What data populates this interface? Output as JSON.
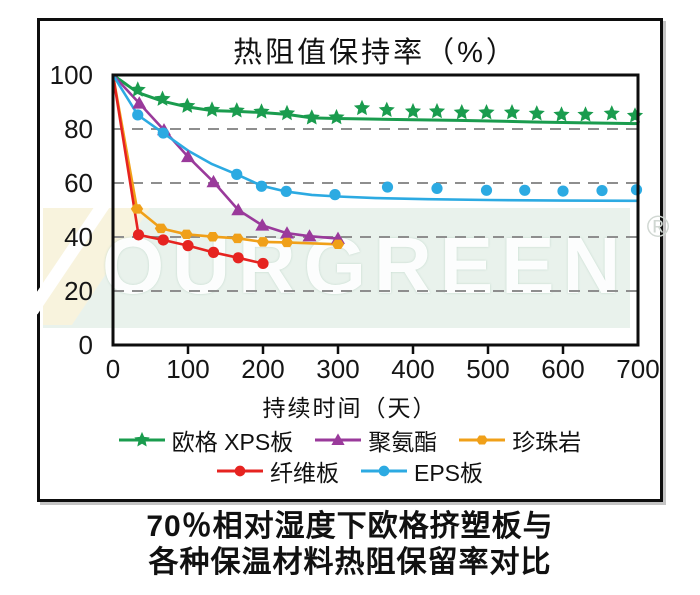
{
  "chart_data": {
    "type": "line",
    "title": "热阻值保持率（%）",
    "xlabel": "持续时间（天）",
    "ylabel": "",
    "xlim": [
      0,
      700
    ],
    "ylim": [
      0,
      100
    ],
    "x_ticks": [
      0,
      100,
      200,
      300,
      400,
      500,
      600,
      700
    ],
    "y_ticks": [
      0,
      20,
      40,
      60,
      80,
      100
    ],
    "grid_values": [
      20,
      40,
      60,
      80
    ],
    "grid_style": "dashed",
    "legend_position": "bottom",
    "colors": {
      "grid": "#8e8e8e",
      "axis": "#0d0d0d"
    },
    "series": [
      {
        "name": "欧格 XPS板",
        "color": "#1a9c4e",
        "marker": "star",
        "line": [
          [
            0,
            100
          ],
          [
            33,
            93.5
          ],
          [
            66,
            90.3
          ],
          [
            99,
            88.2
          ],
          [
            132,
            86.8
          ],
          [
            165,
            86.5
          ],
          [
            198,
            86.1
          ],
          [
            232,
            85.4
          ],
          [
            265,
            84.1
          ],
          [
            298,
            83.9
          ],
          [
            340,
            83.7
          ],
          [
            400,
            83.4
          ],
          [
            460,
            83.2
          ],
          [
            520,
            82.9
          ],
          [
            560,
            82.6
          ],
          [
            620,
            82.3
          ],
          [
            700,
            82
          ]
        ],
        "markers": [
          [
            33,
            94.5
          ],
          [
            66,
            91.1
          ],
          [
            99,
            88.5
          ],
          [
            132,
            87.1
          ],
          [
            165,
            86.8
          ],
          [
            198,
            86.4
          ],
          [
            232,
            85.8
          ],
          [
            265,
            84.2
          ],
          [
            298,
            84.3
          ],
          [
            332,
            87.7
          ],
          [
            365,
            87
          ],
          [
            400,
            86.5
          ],
          [
            432,
            86.5
          ],
          [
            465,
            86.1
          ],
          [
            498,
            86.1
          ],
          [
            532,
            86.1
          ],
          [
            565,
            85.7
          ],
          [
            598,
            85.3
          ],
          [
            630,
            85.3
          ],
          [
            665,
            85.7
          ],
          [
            696,
            84.9
          ]
        ]
      },
      {
        "name": "聚氨酯",
        "color": "#9a3a9b",
        "marker": "triangle",
        "line": [
          [
            0,
            100
          ],
          [
            35,
            89.5
          ],
          [
            68,
            79.6
          ],
          [
            100,
            69.7
          ],
          [
            134,
            60.4
          ],
          [
            167,
            50
          ],
          [
            199,
            44.3
          ],
          [
            232,
            41.4
          ],
          [
            262,
            40.3
          ],
          [
            300,
            39.4
          ]
        ],
        "markers": [
          [
            35,
            89.5
          ],
          [
            68,
            79.6
          ],
          [
            100,
            69.7
          ],
          [
            134,
            60.4
          ],
          [
            167,
            50
          ],
          [
            199,
            44.3
          ],
          [
            232,
            41.4
          ],
          [
            262,
            40.3
          ],
          [
            300,
            39.4
          ]
        ]
      },
      {
        "name": "珍珠岩",
        "color": "#f0a019",
        "marker": "hexagon",
        "line": [
          [
            0,
            100
          ],
          [
            32,
            50.4
          ],
          [
            64,
            43.2
          ],
          [
            98,
            41
          ],
          [
            133,
            40.1
          ],
          [
            166,
            39.5
          ],
          [
            200,
            38.2
          ],
          [
            232,
            38
          ],
          [
            300,
            37.3
          ]
        ],
        "markers": [
          [
            32,
            50.4
          ],
          [
            64,
            43.2
          ],
          [
            98,
            41
          ],
          [
            133,
            40.1
          ],
          [
            166,
            39.5
          ],
          [
            200,
            38.2
          ],
          [
            232,
            38
          ],
          [
            300,
            37.3
          ]
        ]
      },
      {
        "name": "纤维板",
        "color": "#e62320",
        "marker": "circle",
        "line": [
          [
            0,
            100
          ],
          [
            34,
            40.8
          ],
          [
            67,
            38.9
          ],
          [
            100,
            36.8
          ],
          [
            134,
            34.3
          ],
          [
            167,
            32.3
          ],
          [
            200,
            30.2
          ]
        ],
        "markers": [
          [
            34,
            40.8
          ],
          [
            67,
            38.9
          ],
          [
            100,
            36.8
          ],
          [
            134,
            34.3
          ],
          [
            167,
            32.3
          ],
          [
            200,
            30.2
          ]
        ]
      },
      {
        "name": "EPS板",
        "color": "#2caae2",
        "marker": "circle",
        "line": [
          [
            0,
            100
          ],
          [
            33,
            85.2
          ],
          [
            67,
            78.5
          ],
          [
            100,
            72
          ],
          [
            132,
            67
          ],
          [
            165,
            63.2
          ],
          [
            198,
            59
          ],
          [
            231,
            56.8
          ],
          [
            265,
            55.6
          ],
          [
            300,
            55
          ],
          [
            350,
            54.4
          ],
          [
            420,
            54
          ],
          [
            500,
            53.7
          ],
          [
            600,
            53.5
          ],
          [
            700,
            53.4
          ]
        ],
        "markers": [
          [
            33,
            85.2
          ],
          [
            67,
            78.5
          ],
          [
            165,
            63.2
          ],
          [
            198,
            58.8
          ],
          [
            231,
            56.9
          ],
          [
            296,
            55.7
          ],
          [
            366,
            58.5
          ],
          [
            432,
            58
          ],
          [
            498,
            57.3
          ],
          [
            549,
            57.3
          ],
          [
            600,
            57
          ],
          [
            652,
            57.2
          ],
          [
            698,
            57.5
          ]
        ]
      }
    ],
    "legend_rows": [
      [
        0,
        1,
        2
      ],
      [
        3,
        4
      ]
    ]
  },
  "watermark": {
    "text": "OURGREEN",
    "registered": "®"
  },
  "caption": {
    "line1": "70％相对湿度下欧格挤塑板与",
    "line2": "各种保温材料热阻保留率对比"
  }
}
